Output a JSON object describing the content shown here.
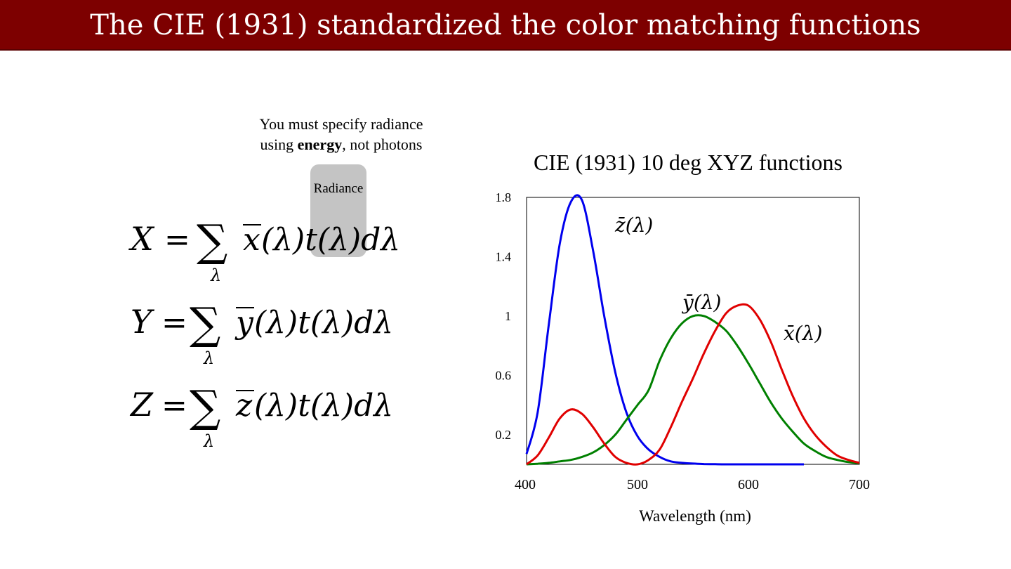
{
  "slide": {
    "title": "The CIE (1931) standardized the color matching functions",
    "note_line1": "You must specify radiance",
    "note_prefix": "using ",
    "note_bold": "energy",
    "note_suffix": ", not photons",
    "highlight_label": "Radiance"
  },
  "equations": [
    {
      "lhs": "X",
      "fn": "x"
    },
    {
      "lhs": "Y",
      "fn": "y"
    },
    {
      "lhs": "Z",
      "fn": "z"
    }
  ],
  "chart_data": {
    "type": "line",
    "title": "CIE (1931) 10 deg XYZ functions",
    "xlabel": "Wavelength (nm)",
    "ylabel": "",
    "xlim": [
      400,
      700
    ],
    "ylim": [
      0,
      1.8
    ],
    "xticks": [
      400,
      500,
      600,
      700
    ],
    "xtick_labels": [
      "400",
      "500",
      "600",
      "700"
    ],
    "yticks": [
      0.2,
      0.6,
      1.0,
      1.4,
      1.8
    ],
    "ytick_labels": [
      "0.2",
      "0.6",
      "1",
      "1.4",
      "1.8"
    ],
    "grid": false,
    "series": [
      {
        "name": "z̄(λ)",
        "color": "#0000ee",
        "x": [
          400,
          410,
          420,
          430,
          440,
          450,
          460,
          470,
          480,
          490,
          500,
          510,
          520,
          530,
          540,
          550,
          560,
          570,
          580,
          600,
          620,
          650
        ],
        "y": [
          0.07,
          0.35,
          0.94,
          1.49,
          1.77,
          1.78,
          1.44,
          1.0,
          0.62,
          0.35,
          0.19,
          0.1,
          0.05,
          0.02,
          0.01,
          0.005,
          0.002,
          0.001,
          0.0,
          0.0,
          0.0,
          0.0
        ]
      },
      {
        "name": "ȳ(λ)",
        "color": "#008000",
        "x": [
          400,
          410,
          420,
          430,
          440,
          450,
          460,
          470,
          480,
          490,
          500,
          510,
          520,
          530,
          540,
          550,
          560,
          570,
          580,
          590,
          600,
          610,
          620,
          630,
          640,
          650,
          660,
          670,
          680,
          690,
          700
        ],
        "y": [
          0.0,
          0.004,
          0.01,
          0.02,
          0.03,
          0.05,
          0.08,
          0.13,
          0.2,
          0.3,
          0.4,
          0.5,
          0.7,
          0.85,
          0.95,
          1.0,
          1.0,
          0.96,
          0.9,
          0.8,
          0.68,
          0.55,
          0.42,
          0.31,
          0.22,
          0.14,
          0.09,
          0.05,
          0.03,
          0.015,
          0.007
        ]
      },
      {
        "name": "x̄(λ)",
        "color": "#e00000",
        "x": [
          400,
          410,
          420,
          430,
          440,
          450,
          460,
          470,
          480,
          490,
          500,
          510,
          520,
          530,
          540,
          550,
          560,
          570,
          580,
          590,
          600,
          610,
          620,
          630,
          640,
          650,
          660,
          670,
          680,
          690,
          700
        ],
        "y": [
          0.0,
          0.06,
          0.18,
          0.31,
          0.37,
          0.34,
          0.25,
          0.14,
          0.05,
          0.01,
          0.0,
          0.03,
          0.1,
          0.25,
          0.42,
          0.58,
          0.75,
          0.9,
          1.02,
          1.07,
          1.07,
          0.98,
          0.83,
          0.64,
          0.46,
          0.31,
          0.2,
          0.12,
          0.06,
          0.03,
          0.01
        ]
      }
    ]
  }
}
